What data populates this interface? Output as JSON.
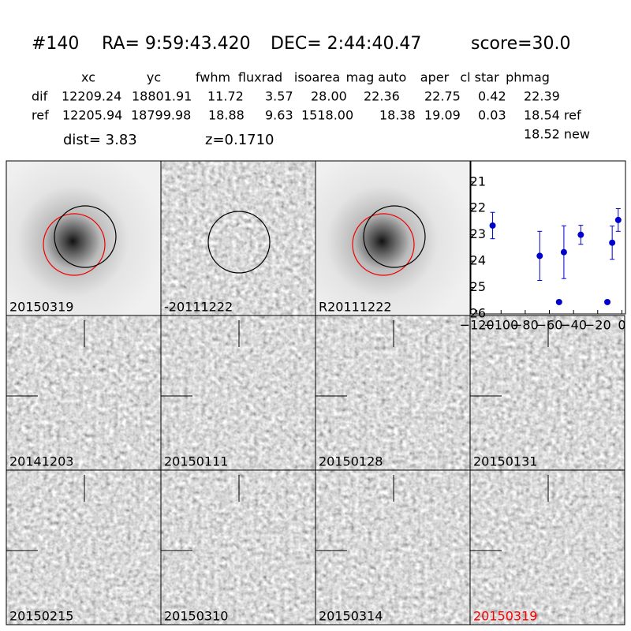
{
  "header": {
    "id": "#140",
    "ra": "RA= 9:59:43.420",
    "dec": "DEC= 2:44:40.47",
    "score": "score=30.0"
  },
  "table": {
    "columns": [
      "xc",
      "yc",
      "fwhm",
      "fluxrad",
      "isoarea",
      "mag auto",
      "aper",
      "cl star",
      "phmag"
    ],
    "rows": [
      [
        "dif",
        "12209.24",
        "18801.91",
        "11.72",
        "3.57",
        "28.00",
        "22.36",
        "22.75",
        "0.42",
        "22.39"
      ],
      [
        "ref",
        "12205.94",
        "18799.98",
        "18.88",
        "9.63",
        "1518.00",
        "18.38",
        "19.09",
        "0.03",
        "18.54 ref"
      ]
    ],
    "extra": "18.52 new"
  },
  "dist": "dist=  3.83",
  "z": "z=0.1710",
  "stamps": [
    "20150319",
    "-20111222",
    "R20111222"
  ],
  "epochs": [
    "20141203",
    "20150111",
    "20150128",
    "20150131",
    "20150215",
    "20150310",
    "20150314",
    "20150319"
  ],
  "chart_data": {
    "type": "errorbar",
    "series": [
      {
        "color": "#0000cc",
        "x": [
          -107,
          -68,
          -52,
          -48,
          -34,
          -12,
          -8,
          -3
        ],
        "values": [
          22.65,
          23.8,
          25.55,
          23.66,
          23.0,
          25.55,
          23.3,
          22.44
        ],
        "errors": [
          0.5,
          0.93,
          null,
          1.0,
          0.36,
          null,
          0.63,
          0.43
        ]
      }
    ],
    "xlim": [
      -125,
      3
    ],
    "ylim": [
      26,
      20.2
    ],
    "xticks": [
      {
        "value": -120,
        "label": "−120"
      },
      {
        "value": -100,
        "label": "−100"
      },
      {
        "value": -80,
        "label": "−80"
      },
      {
        "value": -60,
        "label": "−60"
      },
      {
        "value": -40,
        "label": "−40"
      },
      {
        "value": -20,
        "label": "−20"
      },
      0
    ],
    "yticks": [
      21,
      22,
      23,
      24,
      25,
      26
    ]
  }
}
